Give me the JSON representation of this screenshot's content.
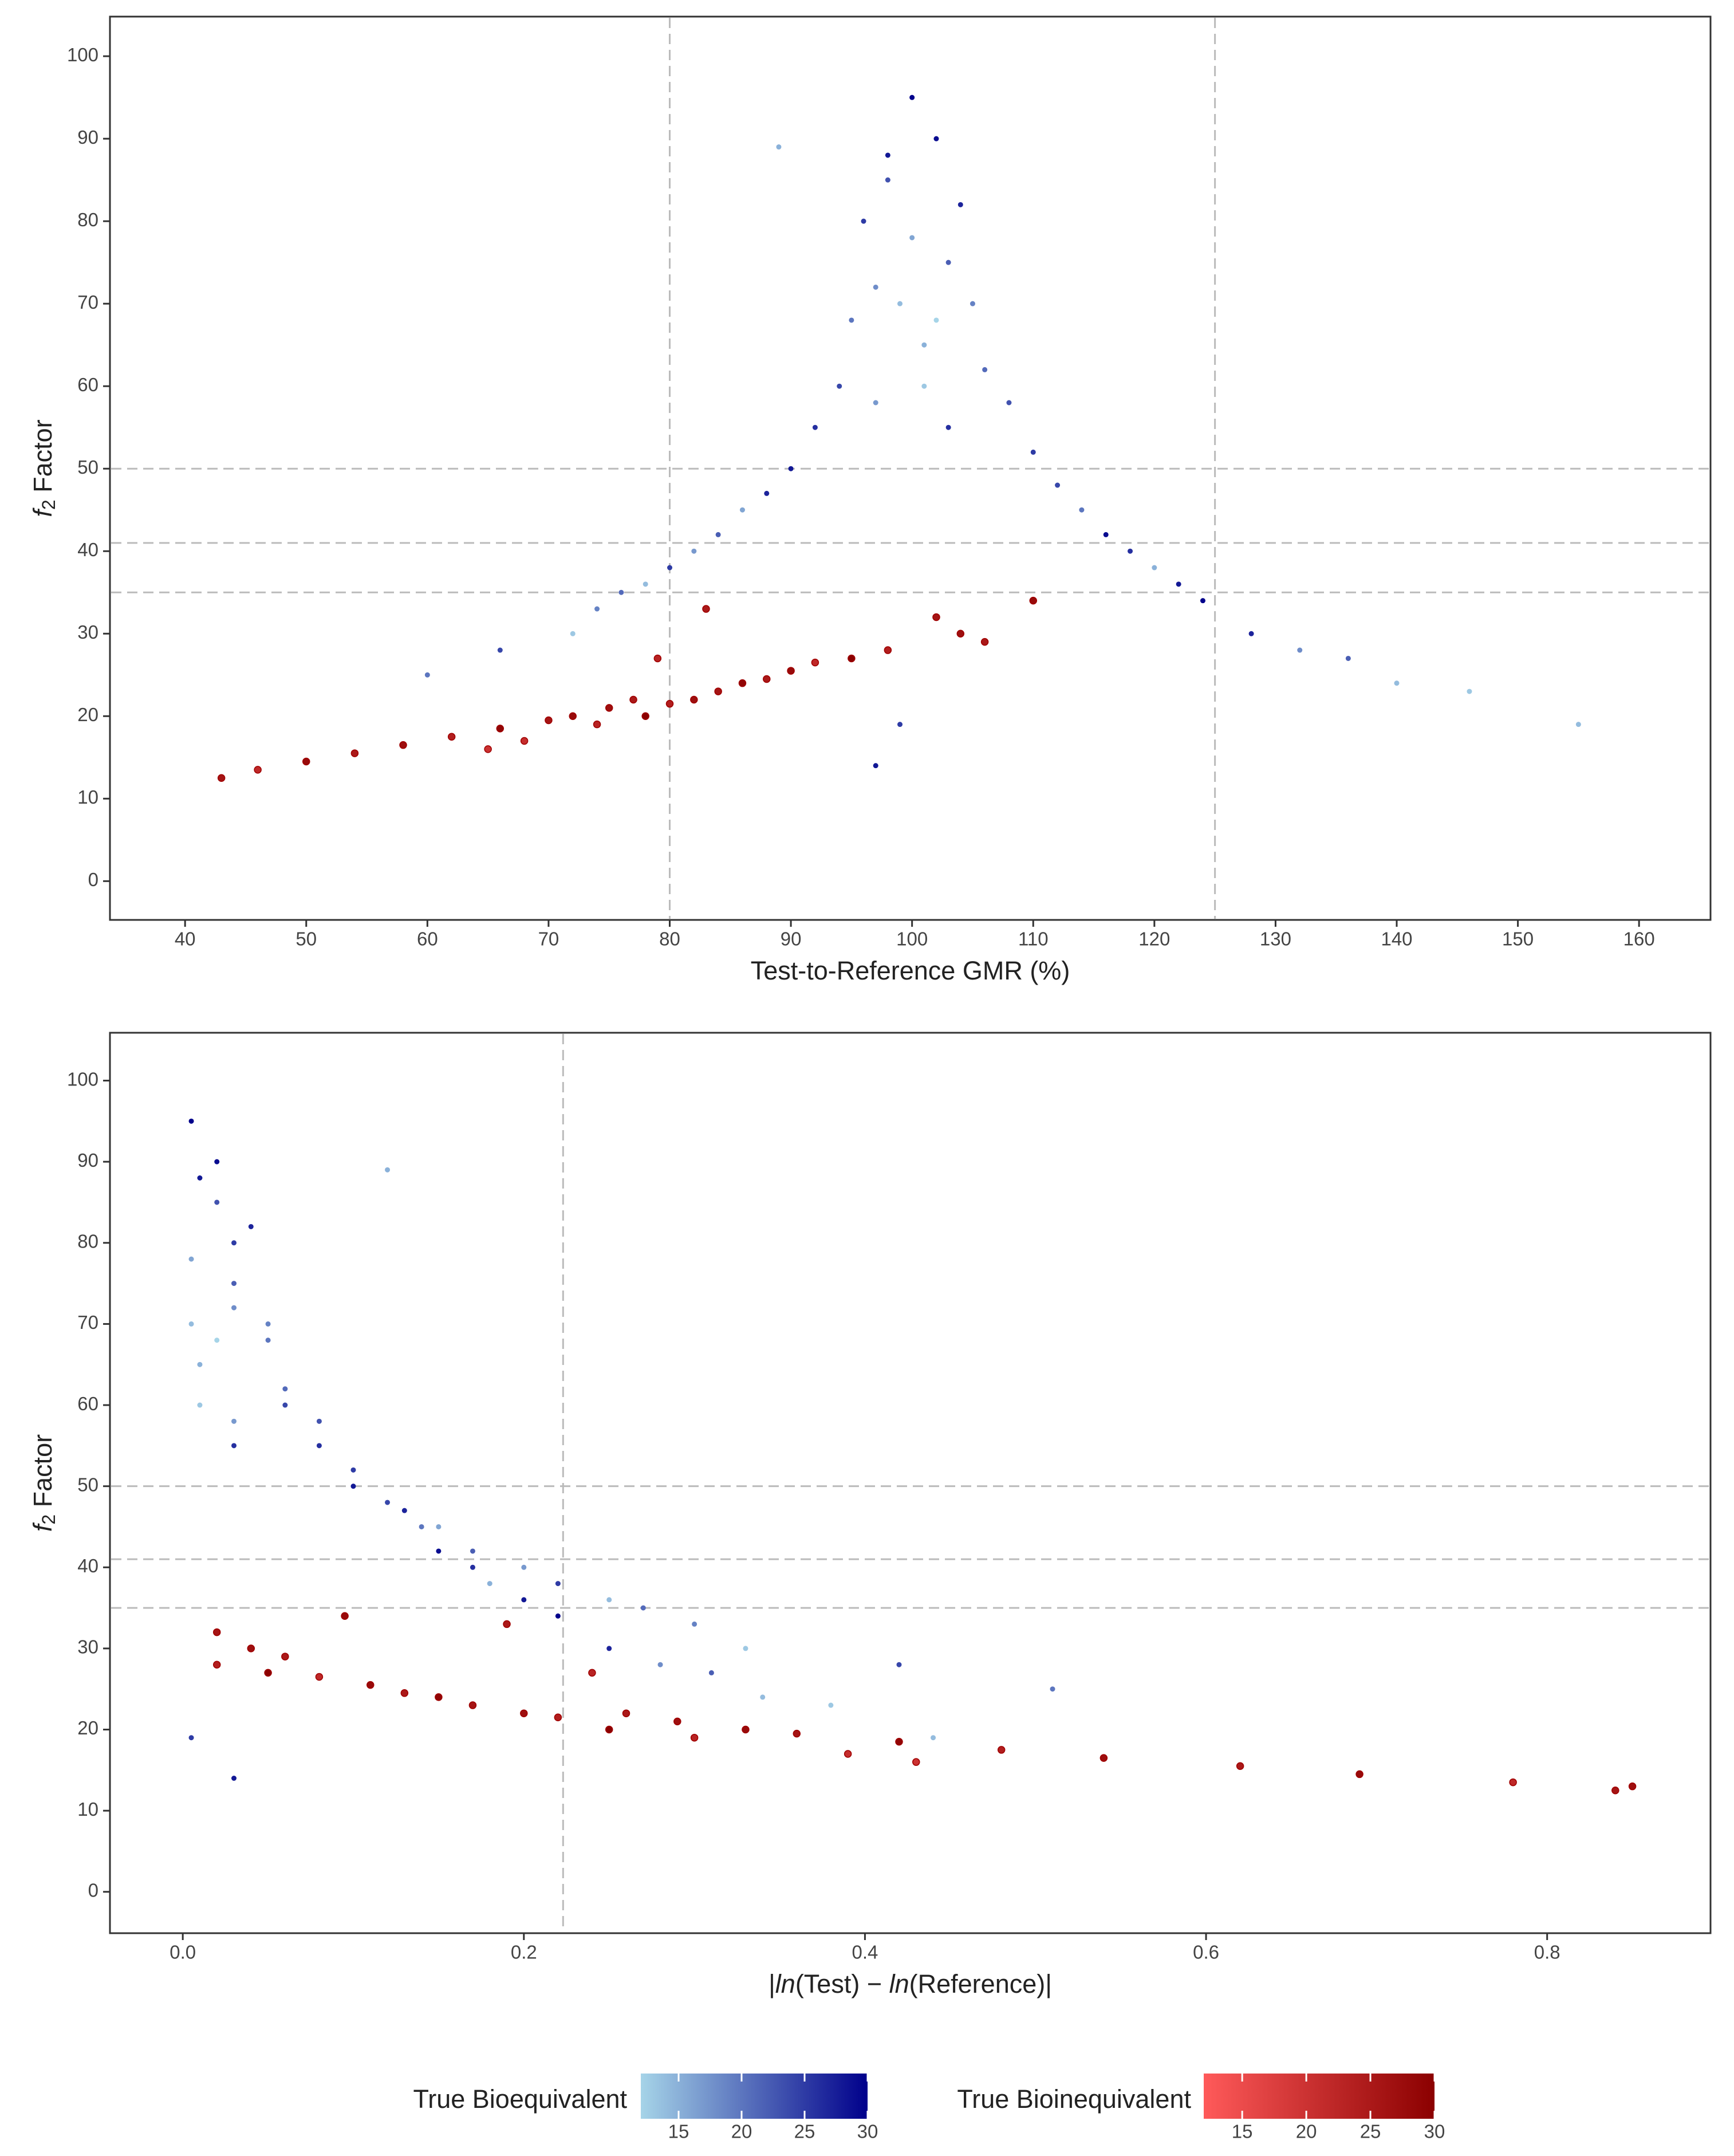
{
  "chart_data": [
    {
      "type": "scatter",
      "xlabel": [
        "Test-to-Reference GMR (%)"
      ],
      "ylabel": [
        "f",
        "2",
        " Factor"
      ],
      "xlim": [
        33.8,
        165.9
      ],
      "ylim": [
        -4.7,
        104.8
      ],
      "xticks": [
        40,
        50,
        60,
        70,
        80,
        90,
        100,
        110,
        120,
        130,
        140,
        150,
        160
      ],
      "yticks": [
        0,
        10,
        20,
        30,
        40,
        50,
        60,
        70,
        80,
        90,
        100
      ],
      "vlines": [
        80,
        125
      ],
      "hlines": [
        35,
        41,
        50
      ],
      "series": [
        {
          "name": "True Bioequivalent",
          "colorscale": {
            "lim": [
              12,
              30
            ],
            "ticks": [
              15,
              20,
              25,
              30
            ],
            "colors": [
              "#a6d4e8",
              "#00008b"
            ]
          },
          "x": [
            100,
            98,
            102,
            96,
            104,
            99,
            101,
            97,
            103,
            95,
            105,
            94,
            106,
            92,
            108,
            90,
            110,
            88,
            112,
            86,
            114,
            84,
            116,
            82,
            118,
            80,
            120,
            78,
            122,
            76,
            124,
            74,
            128,
            72,
            132,
            66,
            136,
            60,
            140,
            146,
            155,
            101,
            100,
            98,
            102,
            97,
            103,
            89,
            99,
            97
          ],
          "y": [
            95,
            88,
            90,
            80,
            82,
            70,
            65,
            72,
            75,
            68,
            70,
            60,
            62,
            55,
            58,
            50,
            52,
            47,
            48,
            45,
            45,
            42,
            42,
            40,
            40,
            38,
            38,
            36,
            36,
            35,
            34,
            33,
            30,
            30,
            28,
            28,
            27,
            25,
            24,
            23,
            19,
            60,
            78,
            85,
            68,
            58,
            55,
            89,
            19,
            14
          ],
          "c": [
            30,
            28,
            29,
            25,
            27,
            14,
            15,
            18,
            22,
            20,
            19,
            24,
            21,
            26,
            23,
            28,
            25,
            27,
            24,
            16,
            20,
            22,
            29,
            17,
            26,
            25,
            15,
            14,
            28,
            21,
            30,
            19,
            27,
            13,
            18,
            24,
            22,
            20,
            14,
            13,
            14,
            13,
            16,
            23,
            12,
            17,
            26,
            15,
            25,
            28
          ]
        },
        {
          "name": "True Bioinequivalent",
          "colorscale": {
            "lim": [
              12,
              30
            ],
            "ticks": [
              15,
              20,
              25,
              30
            ],
            "colors": [
              "#ff5a5a",
              "#8b0000"
            ]
          },
          "x": [
            43,
            46,
            50,
            54,
            58,
            62,
            66,
            68,
            70,
            72,
            74,
            75,
            77,
            78,
            80,
            82,
            84,
            86,
            88,
            90,
            92,
            95,
            98,
            102,
            104,
            106,
            110,
            79,
            83,
            65
          ],
          "y": [
            12.5,
            13.5,
            14.5,
            15.5,
            16.5,
            17.5,
            18.5,
            17,
            19.5,
            20,
            19,
            21,
            22,
            20,
            21.5,
            22,
            23,
            24,
            24.5,
            25.5,
            26.5,
            27,
            28,
            32,
            30,
            29,
            34,
            27,
            33,
            16
          ],
          "c": [
            26,
            22,
            28,
            25,
            27,
            24,
            29,
            21,
            26,
            28,
            23,
            27,
            25,
            30,
            24,
            27,
            26,
            29,
            25,
            28,
            22,
            30,
            24,
            26,
            27,
            25,
            28,
            23,
            25,
            20
          ]
        }
      ]
    },
    {
      "type": "scatter",
      "xlabel": [
        "|",
        "ln",
        "(Test) − ",
        "ln",
        "(Reference)|"
      ],
      "ylabel": [
        "f",
        "2",
        " Factor"
      ],
      "xlim": [
        -0.0427,
        0.8958
      ],
      "ylim": [
        -5.1,
        105.9
      ],
      "xticks": [
        {
          "value": 0,
          "label": "0.0"
        },
        {
          "value": 0.2,
          "label": "0.2"
        },
        {
          "value": 0.4,
          "label": "0.4"
        },
        {
          "value": 0.6,
          "label": "0.6"
        },
        {
          "value": 0.8,
          "label": "0.8"
        }
      ],
      "yticks": [
        0,
        10,
        20,
        30,
        40,
        50,
        60,
        70,
        80,
        90,
        100
      ],
      "vlines": [
        0.223
      ],
      "hlines": [
        35,
        41,
        50
      ],
      "series": [
        {
          "name": "True Bioequivalent",
          "colorscale": {
            "lim": [
              12,
              30
            ],
            "ticks": [
              15,
              20,
              25,
              30
            ],
            "colors": [
              "#a6d4e8",
              "#00008b"
            ]
          },
          "x": [
            0.005,
            0.01,
            0.02,
            0.03,
            0.04,
            0.005,
            0.01,
            0.03,
            0.03,
            0.05,
            0.05,
            0.06,
            0.06,
            0.08,
            0.08,
            0.1,
            0.1,
            0.13,
            0.12,
            0.15,
            0.14,
            0.17,
            0.15,
            0.2,
            0.17,
            0.22,
            0.18,
            0.25,
            0.2,
            0.27,
            0.22,
            0.3,
            0.25,
            0.33,
            0.28,
            0.42,
            0.31,
            0.51,
            0.34,
            0.38,
            0.44,
            0.01,
            0.005,
            0.02,
            0.02,
            0.03,
            0.03,
            0.12,
            0.005,
            0.03
          ],
          "y": [
            95,
            88,
            90,
            80,
            82,
            70,
            65,
            72,
            75,
            68,
            70,
            60,
            62,
            55,
            58,
            50,
            52,
            47,
            48,
            45,
            45,
            42,
            42,
            40,
            40,
            38,
            38,
            36,
            36,
            35,
            34,
            33,
            30,
            30,
            28,
            28,
            27,
            25,
            24,
            23,
            19,
            60,
            78,
            85,
            68,
            58,
            55,
            89,
            19,
            14
          ],
          "c": [
            30,
            28,
            29,
            25,
            27,
            14,
            15,
            18,
            22,
            20,
            19,
            24,
            21,
            26,
            23,
            28,
            25,
            27,
            24,
            16,
            20,
            22,
            29,
            17,
            26,
            25,
            15,
            14,
            28,
            21,
            30,
            19,
            27,
            13,
            18,
            24,
            22,
            20,
            14,
            13,
            14,
            13,
            16,
            23,
            12,
            17,
            26,
            15,
            25,
            28
          ]
        },
        {
          "name": "True Bioinequivalent",
          "colorscale": {
            "lim": [
              12,
              30
            ],
            "ticks": [
              15,
              20,
              25,
              30
            ],
            "colors": [
              "#ff5a5a",
              "#8b0000"
            ]
          },
          "x": [
            0.84,
            0.78,
            0.69,
            0.62,
            0.54,
            0.48,
            0.42,
            0.39,
            0.36,
            0.33,
            0.3,
            0.29,
            0.26,
            0.25,
            0.22,
            0.2,
            0.17,
            0.15,
            0.13,
            0.11,
            0.08,
            0.05,
            0.02,
            0.02,
            0.04,
            0.06,
            0.095,
            0.24,
            0.19,
            0.43,
            0.85
          ],
          "y": [
            12.5,
            13.5,
            14.5,
            15.5,
            16.5,
            17.5,
            18.5,
            17,
            19.5,
            20,
            19,
            21,
            22,
            20,
            21.5,
            22,
            23,
            24,
            24.5,
            25.5,
            26.5,
            27,
            28,
            32,
            30,
            29,
            34,
            27,
            33,
            16,
            13
          ],
          "c": [
            26,
            22,
            28,
            25,
            27,
            24,
            29,
            21,
            26,
            28,
            23,
            27,
            25,
            30,
            24,
            27,
            26,
            29,
            25,
            28,
            22,
            30,
            24,
            26,
            27,
            25,
            28,
            23,
            25,
            20,
            27
          ]
        }
      ]
    }
  ]
}
